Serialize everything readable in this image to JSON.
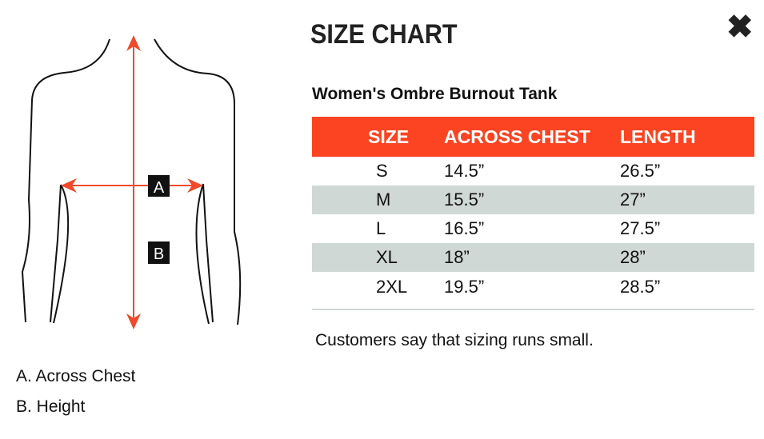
{
  "header": {
    "title": "SIZE CHART",
    "close_icon": "close-icon"
  },
  "diagram": {
    "label_a": "A",
    "label_b": "B",
    "arrow_color": "#f04a2a"
  },
  "legend": [
    "A. Across Chest",
    "B. Height"
  ],
  "product": "Women's Ombre Burnout Tank",
  "table": {
    "header_color": "#fc4422",
    "stripe_color": "#d0d8d5",
    "columns": [
      "SIZE",
      "ACROSS CHEST",
      "LENGTH"
    ],
    "rows": [
      [
        "S",
        "14.5”",
        "26.5”"
      ],
      [
        "M",
        "15.5”",
        "27”"
      ],
      [
        "L",
        "16.5”",
        "27.5”"
      ],
      [
        "XL",
        "18”",
        "28”"
      ],
      [
        "2XL",
        "19.5”",
        "28.5”"
      ]
    ]
  },
  "note": "Customers say that sizing runs small."
}
